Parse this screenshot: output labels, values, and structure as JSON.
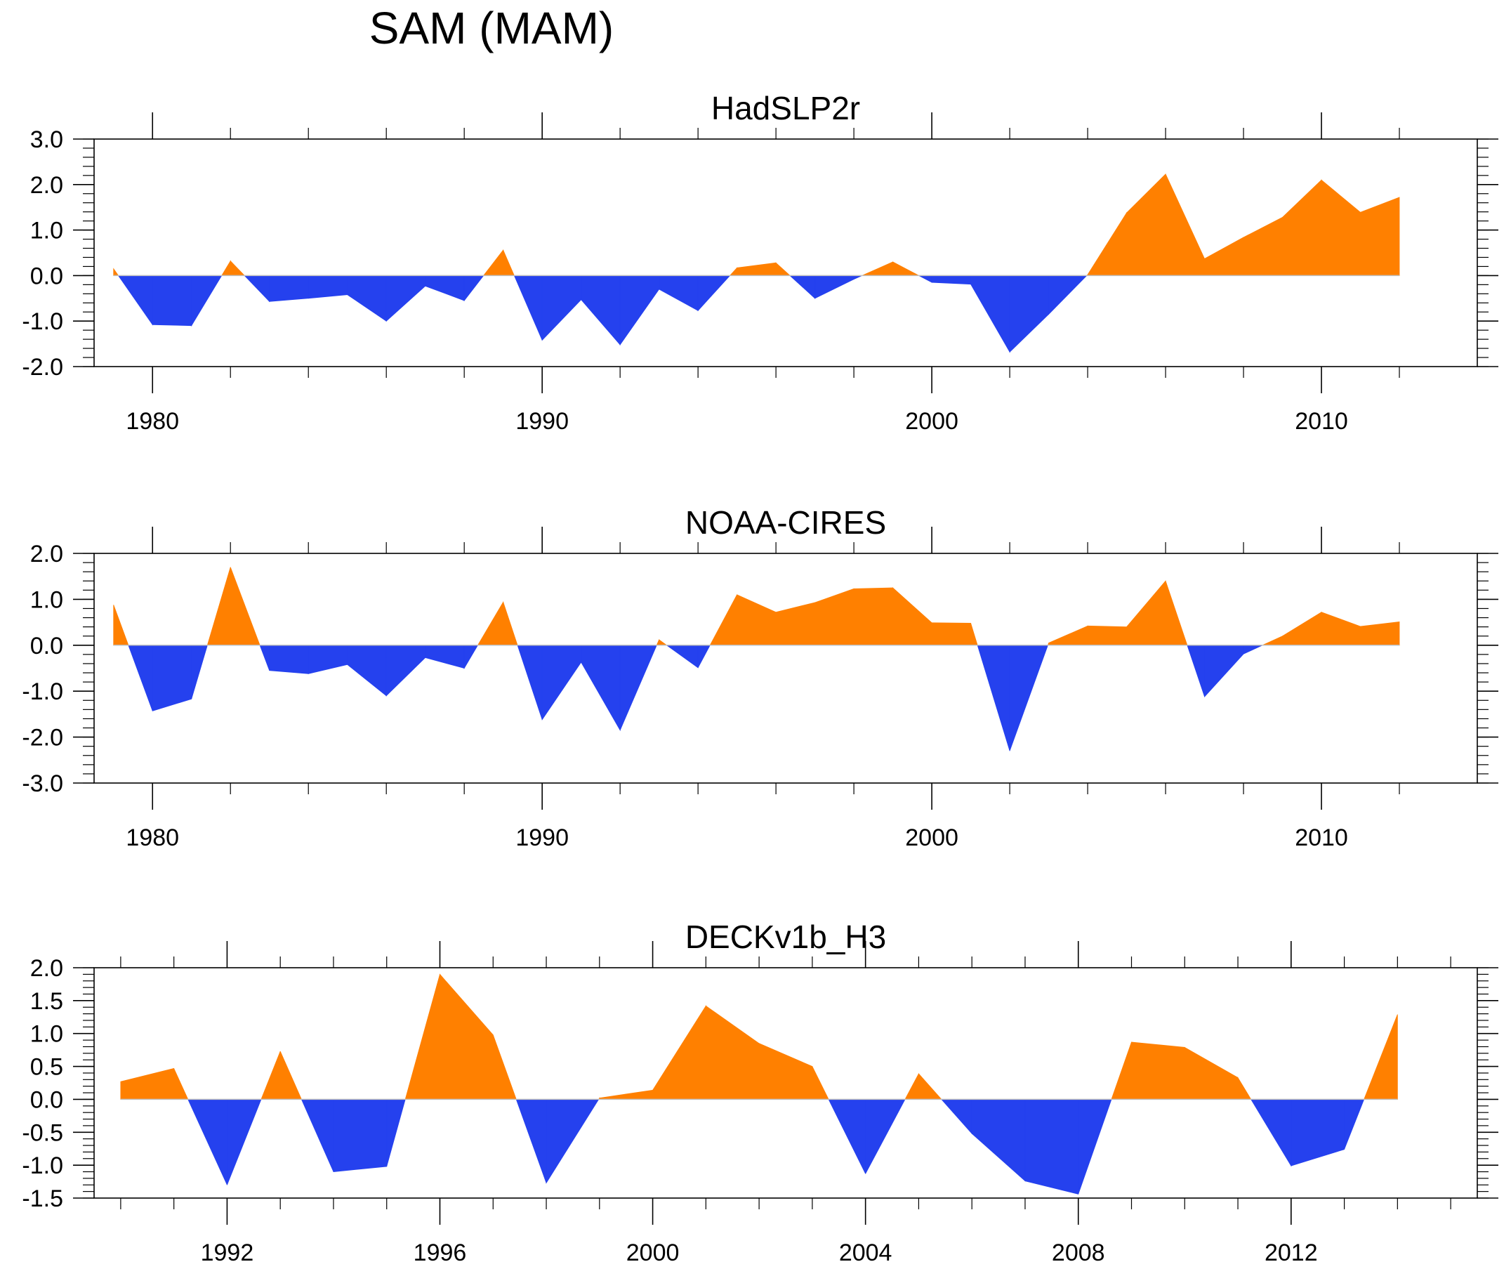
{
  "title": "SAM (MAM)",
  "colors": {
    "positive": "#ff8000",
    "negative": "#2541ee",
    "axis": "#000000",
    "zero_line": "#c0c0c0"
  },
  "chart_data": [
    {
      "type": "area",
      "title": "HadSLP2r",
      "xlabel": "",
      "ylabel": "",
      "xlim": [
        1978.5,
        2014.0
      ],
      "ylim": [
        -2.0,
        3.0
      ],
      "yticks": [
        -2.0,
        -1.0,
        0.0,
        1.0,
        2.0,
        3.0
      ],
      "ytick_labels": [
        "-2.0",
        "-1.0",
        "0.0",
        "1.0",
        "2.0",
        "3.0"
      ],
      "y_minor_step": 0.2,
      "xticks": [
        1980,
        1990,
        2000,
        2010
      ],
      "xtick_labels": [
        "1980",
        "1990",
        "2000",
        "2010"
      ],
      "x_minor_ticks": [
        1982,
        1984,
        1986,
        1988,
        1992,
        1994,
        1996,
        1998,
        2002,
        2004,
        2006,
        2008,
        2012
      ],
      "x": [
        1979,
        1980,
        1981,
        1982,
        1983,
        1984,
        1985,
        1986,
        1987,
        1988,
        1989,
        1990,
        1991,
        1992,
        1993,
        1994,
        1995,
        1996,
        1997,
        1998,
        1999,
        2000,
        2001,
        2002,
        2003,
        2004,
        2005,
        2006,
        2007,
        2008,
        2009,
        2010,
        2011,
        2012
      ],
      "values": [
        0.15,
        -1.08,
        -1.1,
        0.32,
        -0.57,
        -0.5,
        -0.42,
        -1.0,
        -0.23,
        -0.55,
        0.56,
        -1.42,
        -0.53,
        -1.52,
        -0.3,
        -0.77,
        0.17,
        0.28,
        -0.5,
        -0.08,
        0.3,
        -0.15,
        -0.19,
        -1.68,
        -0.85,
        0.02,
        1.38,
        2.23,
        0.37,
        0.84,
        1.28,
        2.1,
        1.39,
        1.72
      ]
    },
    {
      "type": "area",
      "title": "NOAA-CIRES",
      "xlabel": "",
      "ylabel": "",
      "xlim": [
        1978.5,
        2014.0
      ],
      "ylim": [
        -3.0,
        2.0
      ],
      "yticks": [
        -3.0,
        -2.0,
        -1.0,
        0.0,
        1.0,
        2.0
      ],
      "ytick_labels": [
        "-3.0",
        "-2.0",
        "-1.0",
        "0.0",
        "1.0",
        "2.0"
      ],
      "y_minor_step": 0.2,
      "xticks": [
        1980,
        1990,
        2000,
        2010
      ],
      "xtick_labels": [
        "1980",
        "1990",
        "2000",
        "2010"
      ],
      "x_minor_ticks": [
        1982,
        1984,
        1986,
        1988,
        1992,
        1994,
        1996,
        1998,
        2002,
        2004,
        2006,
        2008,
        2012
      ],
      "x": [
        1979,
        1980,
        1981,
        1982,
        1983,
        1984,
        1985,
        1986,
        1987,
        1988,
        1989,
        1990,
        1991,
        1992,
        1993,
        1994,
        1995,
        1996,
        1997,
        1998,
        1999,
        2000,
        2001,
        2002,
        2003,
        2004,
        2005,
        2006,
        2007,
        2008,
        2009,
        2010,
        2011,
        2012
      ],
      "values": [
        0.88,
        -1.43,
        -1.17,
        1.7,
        -0.55,
        -0.62,
        -0.42,
        -1.1,
        -0.27,
        -0.5,
        0.94,
        -1.62,
        -0.37,
        -1.85,
        0.12,
        -0.49,
        1.1,
        0.72,
        0.93,
        1.23,
        1.25,
        0.49,
        0.48,
        -2.3,
        0.05,
        0.42,
        0.4,
        1.4,
        -1.12,
        -0.19,
        0.2,
        0.72,
        0.41,
        0.51
      ]
    },
    {
      "type": "area",
      "title": "DECKv1b_H3",
      "xlabel": "",
      "ylabel": "",
      "xlim": [
        1989.5,
        2015.5
      ],
      "ylim": [
        -1.5,
        2.0
      ],
      "yticks": [
        -1.5,
        -1.0,
        -0.5,
        0.0,
        0.5,
        1.0,
        1.5,
        2.0
      ],
      "ytick_labels": [
        "-1.5",
        "-1.0",
        "-0.5",
        "0.0",
        "0.5",
        "1.0",
        "1.5",
        "2.0"
      ],
      "y_minor_step": 0.1,
      "xticks": [
        1992,
        1996,
        2000,
        2004,
        2008,
        2012
      ],
      "xtick_labels": [
        "1992",
        "1996",
        "2000",
        "2004",
        "2008",
        "2012"
      ],
      "x_minor_ticks": [
        1990,
        1991,
        1993,
        1994,
        1995,
        1997,
        1998,
        1999,
        2001,
        2002,
        2003,
        2005,
        2006,
        2007,
        2009,
        2010,
        2011,
        2013,
        2014,
        2015
      ],
      "x": [
        1990,
        1991,
        1992,
        1993,
        1994,
        1995,
        1996,
        1997,
        1998,
        1999,
        2000,
        2001,
        2002,
        2003,
        2004,
        2005,
        2006,
        2007,
        2008,
        2009,
        2010,
        2011,
        2012,
        2013,
        2014
      ],
      "values": [
        0.27,
        0.47,
        -1.3,
        0.73,
        -1.1,
        -1.02,
        1.9,
        0.98,
        -1.27,
        0.02,
        0.14,
        1.42,
        0.85,
        0.5,
        -1.13,
        0.39,
        -0.52,
        -1.24,
        -1.44,
        0.87,
        0.79,
        0.33,
        -1.01,
        -0.76,
        1.29
      ]
    }
  ]
}
